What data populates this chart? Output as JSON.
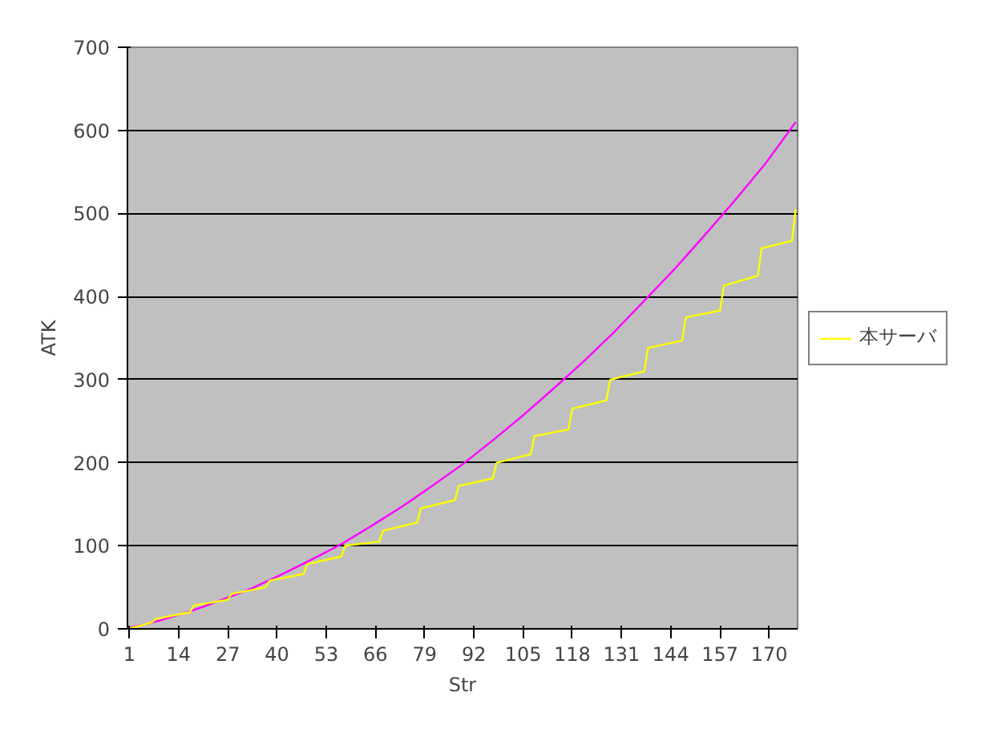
{
  "chart_data": {
    "type": "line",
    "xlabel": "Str",
    "ylabel": "ATK",
    "xlim": [
      0.5,
      177.5
    ],
    "xticks": [
      1,
      14,
      27,
      40,
      53,
      66,
      79,
      92,
      105,
      118,
      131,
      144,
      157,
      170
    ],
    "ylim": [
      0,
      700
    ],
    "yticks": [
      0,
      100,
      200,
      300,
      400,
      500,
      600,
      700
    ],
    "grid": "y",
    "legend": "right",
    "marker": "none",
    "line_style": "solid",
    "series": [
      {
        "color": "#ff00ff",
        "x": [
          1,
          9,
          17,
          25,
          33,
          41,
          49,
          57,
          65,
          73,
          81,
          89,
          97,
          105,
          113,
          121,
          129,
          137,
          145,
          153,
          161,
          169,
          177
        ],
        "values": [
          1,
          10,
          21,
          34,
          48,
          65,
          83,
          102,
          124,
          147,
          172,
          198,
          227,
          257,
          289,
          322,
          357,
          395,
          433,
          474,
          516,
          560,
          610
        ]
      },
      {
        "name": "本サーバ",
        "color": "#ffff00",
        "x": [
          1,
          7,
          8,
          17,
          18,
          27,
          28,
          37,
          38,
          47,
          48,
          57,
          58,
          67,
          68,
          77,
          78,
          87,
          88,
          97,
          98,
          107,
          108,
          117,
          118,
          127,
          128,
          137,
          138,
          147,
          148,
          157,
          158,
          167,
          168,
          176,
          177
        ],
        "values": [
          0,
          8,
          12,
          20,
          28,
          35,
          42,
          50,
          58,
          66,
          78,
          87,
          100,
          105,
          118,
          128,
          145,
          155,
          172,
          181,
          200,
          210,
          232,
          240,
          265,
          275,
          300,
          310,
          338,
          347,
          375,
          383,
          413,
          425,
          458,
          467,
          505
        ]
      }
    ]
  }
}
